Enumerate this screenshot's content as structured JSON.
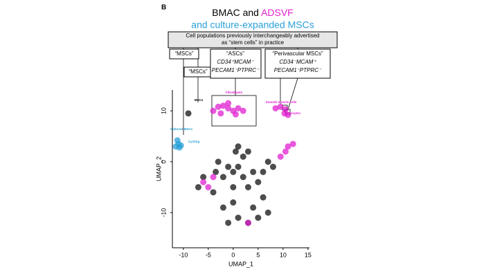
{
  "panel_label": "B",
  "title": {
    "part1": "BMAC and",
    "part2": "ADSVF",
    "part3": "and culture-expanded MSCs"
  },
  "header_box": {
    "line1": "Cell populations previously interchangeably advertised",
    "line2": "as “stem cells” in practice"
  },
  "groups": [
    {
      "lines": [
        "“MSCs”"
      ]
    },
    {
      "lines": [
        "“MSCs”"
      ]
    },
    {
      "lines": [
        "“ASCs”",
        "CD34⁺MCAM⁻",
        "PECAM1⁻PTPRC⁻"
      ]
    },
    {
      "lines": [
        "“Perivascular MSCs”",
        "CD34⁻MCAM⁺",
        "PECAM1⁻PTPRC⁻"
      ]
    }
  ],
  "chart_data": {
    "type": "scatter",
    "x_label": "UMAP_1",
    "y_label": "UMAP_2",
    "xlim": [
      -12.2,
      15.3
    ],
    "ylim": [
      -16.9,
      14.1
    ],
    "xticks": [
      -10,
      -5,
      0,
      5,
      10,
      15
    ],
    "yticks": [
      -10,
      0,
      10
    ],
    "annotations": [
      {
        "text": "Fibroblasts",
        "color": "#e020d0"
      },
      {
        "text": "MSCs",
        "color": "#000000"
      },
      {
        "text": "Smooth muscle cells",
        "color": "#e020d0"
      },
      {
        "text": "Pericytes",
        "color": "#e020d0"
      },
      {
        "text": "Cultured MSCs",
        "color": "#2aa0d8"
      },
      {
        "text": "Cycling",
        "color": "#2aa0d8"
      }
    ],
    "series": [
      {
        "color": "#111111",
        "x": [
          -3,
          -1,
          -2,
          0,
          1,
          2,
          3,
          1,
          2,
          4,
          5,
          3,
          6,
          4,
          7,
          0,
          -2,
          1,
          3,
          5,
          -4,
          -7,
          -6,
          6,
          8,
          7,
          -1,
          0.5,
          -3.5,
          0,
          -9
        ],
        "y": [
          0,
          -1,
          -3,
          -2,
          -1,
          1,
          2,
          3,
          -3,
          -2,
          -4,
          -5,
          -7,
          -9,
          -10,
          -8,
          -9,
          -11,
          -12,
          -11,
          -6,
          -5,
          -3,
          -2,
          -1,
          0,
          -12,
          2,
          -2,
          -5,
          9.5
        ]
      },
      {
        "color": "#e020d0",
        "x": [
          -4,
          -3,
          -2,
          -1,
          0,
          1,
          2,
          -2.5,
          0.5,
          -1,
          8.5,
          9.5,
          10.5,
          10.3,
          11,
          11,
          12,
          10.5,
          9.5,
          3,
          -5,
          -4,
          -6
        ],
        "y": [
          10,
          10.8,
          11,
          10.5,
          10,
          10.5,
          10,
          9.5,
          9.3,
          11.5,
          10.5,
          10.8,
          10.3,
          9.5,
          9.2,
          3,
          3.5,
          2,
          1,
          -12,
          -5,
          -3,
          -4
        ]
      },
      {
        "color": "#2aa0d8",
        "x": [
          -11,
          -11.5,
          -10.8,
          -11.2,
          -10.5
        ],
        "y": [
          3.5,
          3,
          2.8,
          4.2,
          3.2
        ]
      }
    ]
  }
}
